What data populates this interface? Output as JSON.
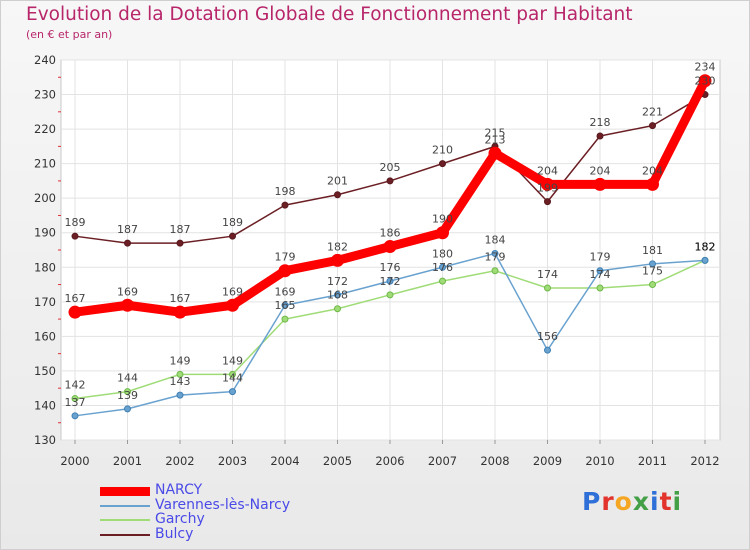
{
  "chart_data": {
    "type": "line",
    "title": "Evolution de la Dotation Globale de Fonctionnement par Habitant",
    "subtitle": "(en € et par an)",
    "xlabel": "",
    "ylabel": "",
    "categories": [
      "2000",
      "2001",
      "2002",
      "2003",
      "2004",
      "2005",
      "2006",
      "2007",
      "2008",
      "2009",
      "2010",
      "2011",
      "2012"
    ],
    "ylim": [
      130,
      240
    ],
    "yticks": [
      130,
      140,
      150,
      160,
      170,
      180,
      190,
      200,
      210,
      220,
      230,
      240
    ],
    "grid": true,
    "series": [
      {
        "name": "Bulcy",
        "color": "#6b1f24",
        "values": [
          189,
          187,
          187,
          189,
          198,
          201,
          205,
          210,
          215,
          199,
          218,
          221,
          230
        ]
      },
      {
        "name": "Garchy",
        "color": "#9fdc77",
        "values": [
          142,
          144,
          149,
          149,
          165,
          168,
          172,
          176,
          179,
          174,
          174,
          175,
          182
        ]
      },
      {
        "name": "Varennes-lès-Narcy",
        "color": "#6aa2cf",
        "values": [
          137,
          139,
          143,
          144,
          169,
          172,
          176,
          180,
          184,
          156,
          179,
          181,
          182
        ]
      },
      {
        "name": "NARCY",
        "color": "#ff0000",
        "values": [
          167,
          169,
          167,
          169,
          179,
          182,
          186,
          190,
          213,
          204,
          204,
          204,
          234
        ]
      }
    ],
    "data_labels": {
      "Bulcy": [
        "189",
        "187",
        "187",
        "189",
        "198",
        "201",
        "205",
        "210",
        "215",
        "199",
        "218",
        "221",
        "230"
      ],
      "Garchy": [
        "142",
        "144",
        "149",
        "149",
        "165",
        "168",
        "172",
        "176",
        "179",
        "174",
        "174",
        "175",
        "182"
      ],
      "Varennes-lès-Narcy": [
        "137",
        "139",
        "143",
        "144",
        "169",
        "172",
        "176",
        "180",
        "184",
        "156",
        "179",
        "181",
        "182"
      ],
      "NARCY": [
        "167",
        "169",
        "167",
        "169",
        "179",
        "182",
        "186",
        "190",
        "213",
        "204",
        "204",
        "204",
        "234"
      ]
    },
    "legend": [
      "NARCY",
      "Varennes-lès-Narcy",
      "Garchy",
      "Bulcy"
    ]
  },
  "logo": {
    "letters": [
      "P",
      "r",
      "o",
      "x",
      "i",
      "t",
      "i"
    ],
    "colors": [
      "#2f6fd8",
      "#e2342c",
      "#f5a623",
      "#43a047",
      "#2f6fd8",
      "#e2342c",
      "#43a047"
    ]
  }
}
